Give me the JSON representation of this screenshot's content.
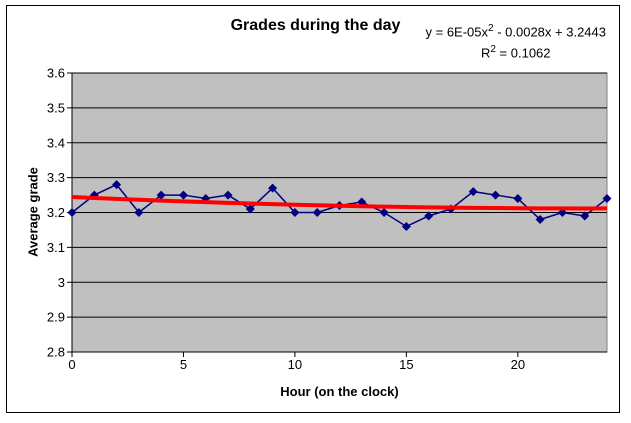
{
  "chart": {
    "title": "Grades during the day",
    "equation_display": {
      "line1_pre": "y = 6E-05x",
      "line1_sup": "2",
      "line1_post": " - 0.0028x + 3.2443",
      "line2_pre": "R",
      "line2_sup": "2",
      "line2_post": " = 0.1062"
    }
  },
  "chart_data": {
    "type": "line",
    "title": "Grades during the day",
    "xlabel": "Hour (on the clock)",
    "ylabel": "Average grade",
    "x": [
      0,
      1,
      2,
      3,
      4,
      5,
      6,
      7,
      8,
      9,
      10,
      11,
      12,
      13,
      14,
      15,
      16,
      17,
      18,
      19,
      20,
      21,
      22,
      23,
      24
    ],
    "y": [
      3.2,
      3.25,
      3.28,
      3.2,
      3.25,
      3.25,
      3.24,
      3.25,
      3.21,
      3.27,
      3.2,
      3.2,
      3.22,
      3.23,
      3.2,
      3.16,
      3.19,
      3.21,
      3.26,
      3.25,
      3.24,
      3.18,
      3.2,
      3.19,
      3.24
    ],
    "xlim": [
      0,
      24
    ],
    "ylim": [
      2.8,
      3.6
    ],
    "x_tick_values": [
      0,
      5,
      10,
      15,
      20
    ],
    "x_tick_labels": [
      "0",
      "5",
      "10",
      "15",
      "20"
    ],
    "y_tick_values": [
      3.6,
      3.5,
      3.4,
      3.3,
      3.2,
      3.1,
      3.0,
      2.9,
      2.8
    ],
    "y_tick_labels": [
      "3.6",
      "3.5",
      "3.4",
      "3.3",
      "3.2",
      "3.1",
      "3",
      "2.9",
      "2.8"
    ],
    "grid": true,
    "legend": false,
    "marker": "diamond",
    "trendline": {
      "type": "polynomial",
      "a": 6e-05,
      "b": -0.0028,
      "c": 3.2443,
      "r_squared": 0.1062,
      "equation_text": "y = 6E-05x2 - 0.0028x + 3.2443",
      "r_squared_text": "R2 = 0.1062"
    },
    "colors": {
      "series": "#000080",
      "trendline": "#ff0000",
      "plot_bg": "#c0c0c0",
      "plot_border": "#808080",
      "grid": "#000000",
      "axis": "#000000"
    }
  }
}
